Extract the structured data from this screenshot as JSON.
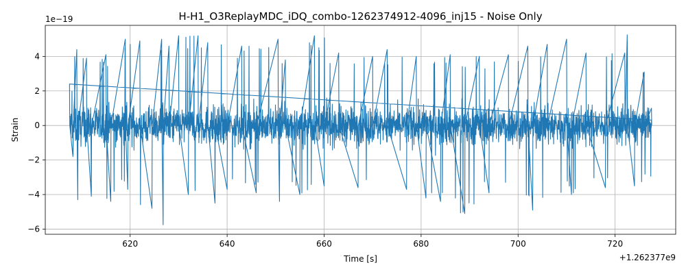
{
  "chart_data": {
    "type": "line",
    "title": "H-H1_O3ReplayMDC_iDQ_combo-1262374912-4096_inj15 - Noise Only",
    "xlabel": "Time [s]",
    "ylabel": "Strain",
    "x_offset_label": "+1.262377e9",
    "y_scale_label": "1e−19",
    "xlim": [
      602.5,
      732.5
    ],
    "ylim": [
      -6.3,
      5.8
    ],
    "xticks": [
      620,
      640,
      660,
      680,
      700,
      720
    ],
    "xtick_labels": [
      "620",
      "640",
      "660",
      "680",
      "700",
      "720"
    ],
    "yticks": [
      -6,
      -4,
      -2,
      0,
      2,
      4
    ],
    "ytick_labels": [
      "−6",
      "−4",
      "−2",
      "0",
      "2",
      "4"
    ],
    "grid": true,
    "series": [
      {
        "color": "#1f77b4",
        "x_start": 607.5,
        "x_end": 727.5,
        "y_range": [
          -5.75,
          5.25
        ],
        "description_points": [
          [
            607.5,
            2.4
          ],
          [
            608.2,
            -1.8
          ],
          [
            609.0,
            4.4
          ],
          [
            609.2,
            -4.3
          ],
          [
            611.0,
            3.9
          ],
          [
            612.0,
            -4.1
          ],
          [
            615.0,
            4.1
          ],
          [
            616.0,
            -4.4
          ],
          [
            619.0,
            5.0
          ],
          [
            619.5,
            -3.7
          ],
          [
            622.0,
            4.9
          ],
          [
            624.5,
            -4.8
          ],
          [
            626.5,
            5.0
          ],
          [
            626.8,
            -5.75
          ],
          [
            628.0,
            4.6
          ],
          [
            630.0,
            5.2
          ],
          [
            632.0,
            -4.0
          ],
          [
            634.0,
            5.2
          ],
          [
            636.0,
            4.8
          ],
          [
            637.5,
            -4.5
          ],
          [
            640.0,
            -3.7
          ],
          [
            643.0,
            4.6
          ],
          [
            646.0,
            -3.9
          ],
          [
            650.5,
            5.0
          ],
          [
            650.8,
            -4.4
          ],
          [
            652.0,
            3.8
          ],
          [
            655.0,
            -4.0
          ],
          [
            658.0,
            5.2
          ],
          [
            660.0,
            -3.5
          ],
          [
            663.0,
            4.2
          ],
          [
            667.0,
            -3.6
          ],
          [
            670.0,
            4.0
          ],
          [
            673.0,
            4.4
          ],
          [
            677.0,
            -3.7
          ],
          [
            679.0,
            4.0
          ],
          [
            681.0,
            -4.2
          ],
          [
            684.0,
            -4.4
          ],
          [
            686.0,
            4.1
          ],
          [
            689.0,
            -5.1
          ],
          [
            692.0,
            4.0
          ],
          [
            694.0,
            -3.9
          ],
          [
            698.0,
            4.1
          ],
          [
            702.0,
            4.6
          ],
          [
            703.0,
            -4.9
          ],
          [
            706.0,
            4.7
          ],
          [
            710.0,
            5.0
          ],
          [
            711.0,
            -4.0
          ],
          [
            714.0,
            4.2
          ],
          [
            718.0,
            -3.6
          ],
          [
            722.0,
            4.2
          ],
          [
            722.5,
            5.25
          ],
          [
            724.0,
            -3.5
          ],
          [
            726.0,
            3.1
          ],
          [
            727.5,
            1.0
          ]
        ]
      }
    ]
  }
}
